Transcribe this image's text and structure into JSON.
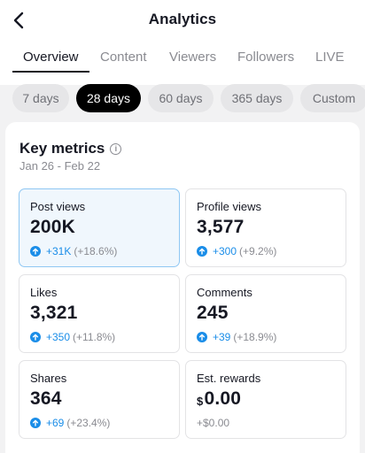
{
  "header": {
    "title": "Analytics"
  },
  "tabs": [
    {
      "label": "Overview"
    },
    {
      "label": "Content"
    },
    {
      "label": "Viewers"
    },
    {
      "label": "Followers"
    },
    {
      "label": "LIVE"
    }
  ],
  "date_chips": [
    {
      "label": "7 days"
    },
    {
      "label": "28 days"
    },
    {
      "label": "60 days"
    },
    {
      "label": "365 days"
    },
    {
      "label": "Custom"
    }
  ],
  "key_metrics": {
    "title": "Key metrics",
    "date_range": "Jan 26 - Feb 22",
    "tiles": [
      {
        "label": "Post views",
        "value": "200K",
        "delta": "+31K",
        "pct": "(+18.6%)"
      },
      {
        "label": "Profile views",
        "value": "3,577",
        "delta": "+300",
        "pct": "(+9.2%)"
      },
      {
        "label": "Likes",
        "value": "3,321",
        "delta": "+350",
        "pct": "(+11.8%)"
      },
      {
        "label": "Comments",
        "value": "245",
        "delta": "+39",
        "pct": "(+18.9%)"
      },
      {
        "label": "Shares",
        "value": "364",
        "delta": "+69",
        "pct": "(+23.4%)"
      },
      {
        "label": "Est. rewards",
        "currency": "$",
        "value": "0.00",
        "change_text": "+$0.00"
      }
    ]
  },
  "colors": {
    "accent": "#1a8de8",
    "text": "#161823",
    "muted": "#8a8b91",
    "selected_tile_bg": "#f0f7fd"
  },
  "icons": {
    "back": "chevron-left-icon",
    "info": "info-circle-icon",
    "increase": "arrow-up-circle-icon"
  }
}
